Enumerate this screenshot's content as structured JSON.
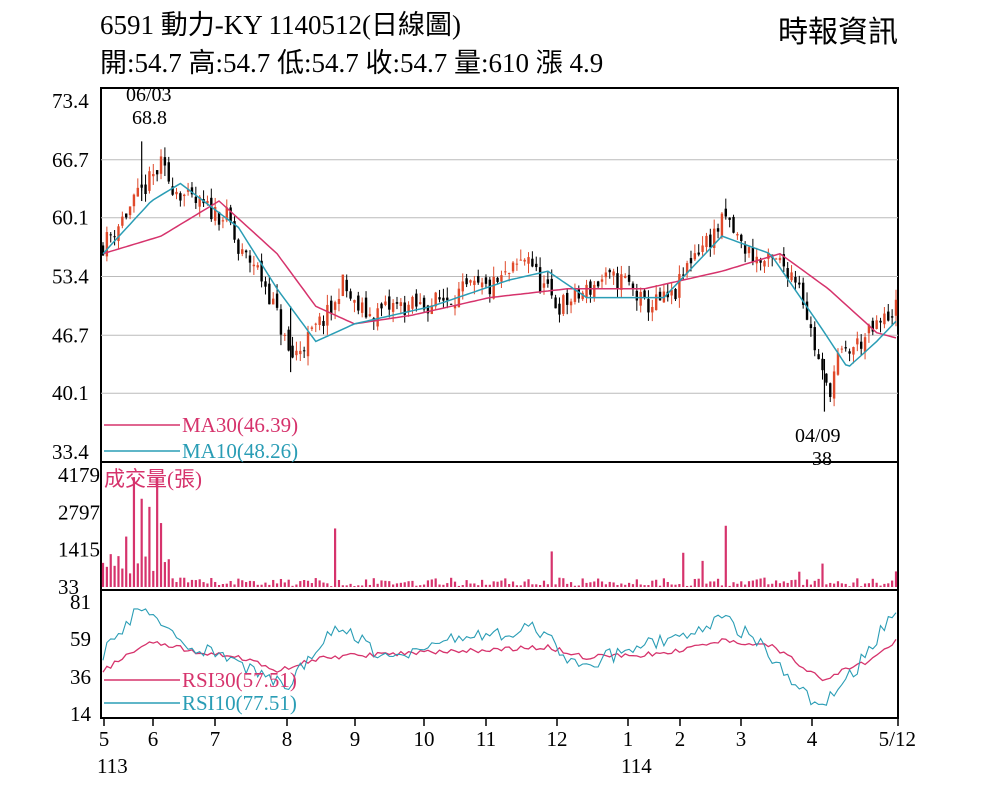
{
  "header": {
    "title": "6591  動力-KY 1140512(日線圖)",
    "ohlc": "開:54.7 高:54.7 低:54.7 收:54.7 量:610 漲 4.9",
    "source": "時報資訊"
  },
  "colors": {
    "up": "#e0492a",
    "down": "#000000",
    "ma30": "#d6336c",
    "ma10": "#2a9db5",
    "volume": "#d6336c",
    "grid": "#bbbbbb"
  },
  "chart_data": [
    {
      "type": "candlestick",
      "ylim": [
        33.4,
        73.4
      ],
      "yticks": [
        "73.4",
        "66.7",
        "60.1",
        "53.4",
        "46.7",
        "40.1",
        "33.4"
      ],
      "legend": [
        {
          "label": "MA30(46.39)"
        },
        {
          "label": "MA10(48.26)"
        }
      ],
      "annotations": [
        {
          "date": "06/03",
          "value": "68.8",
          "kind": "high"
        },
        {
          "date": "04/09",
          "value": "38",
          "kind": "low"
        }
      ],
      "close_trend": [
        [
          0,
          57
        ],
        [
          10,
          60
        ],
        [
          20,
          63
        ],
        [
          30,
          66
        ],
        [
          35,
          64
        ],
        [
          45,
          62
        ],
        [
          55,
          61
        ],
        [
          65,
          60
        ],
        [
          70,
          56
        ],
        [
          78,
          55
        ],
        [
          85,
          52
        ],
        [
          90,
          49
        ],
        [
          97,
          44
        ],
        [
          105,
          46
        ],
        [
          112,
          48
        ],
        [
          120,
          50
        ],
        [
          123,
          53
        ],
        [
          130,
          50
        ],
        [
          138,
          49
        ],
        [
          150,
          50
        ],
        [
          165,
          50
        ],
        [
          178,
          51
        ],
        [
          190,
          52
        ],
        [
          200,
          52
        ],
        [
          212,
          54
        ],
        [
          220,
          56
        ],
        [
          225,
          53
        ],
        [
          235,
          50
        ],
        [
          245,
          51
        ],
        [
          258,
          53
        ],
        [
          270,
          53
        ],
        [
          280,
          50
        ],
        [
          295,
          51
        ],
        [
          305,
          56
        ],
        [
          315,
          58
        ],
        [
          322,
          60
        ],
        [
          330,
          57
        ],
        [
          340,
          55
        ],
        [
          350,
          55
        ],
        [
          360,
          53
        ],
        [
          365,
          48
        ],
        [
          372,
          42
        ],
        [
          375,
          40
        ],
        [
          380,
          44
        ],
        [
          392,
          46
        ],
        [
          402,
          48
        ],
        [
          410,
          50
        ]
      ],
      "ma30_trend": [
        [
          0,
          56
        ],
        [
          30,
          58
        ],
        [
          60,
          62
        ],
        [
          90,
          56
        ],
        [
          110,
          50
        ],
        [
          130,
          48
        ],
        [
          160,
          49
        ],
        [
          200,
          51
        ],
        [
          240,
          52
        ],
        [
          280,
          52
        ],
        [
          320,
          54
        ],
        [
          350,
          56
        ],
        [
          375,
          52
        ],
        [
          400,
          47
        ],
        [
          410,
          46.4
        ]
      ],
      "ma10_trend": [
        [
          0,
          56
        ],
        [
          25,
          62
        ],
        [
          40,
          64
        ],
        [
          70,
          59
        ],
        [
          90,
          52
        ],
        [
          110,
          46
        ],
        [
          130,
          48
        ],
        [
          170,
          50
        ],
        [
          210,
          53
        ],
        [
          230,
          54
        ],
        [
          250,
          51
        ],
        [
          290,
          51
        ],
        [
          320,
          58
        ],
        [
          345,
          56
        ],
        [
          370,
          48
        ],
        [
          385,
          43
        ],
        [
          400,
          46
        ],
        [
          410,
          48.3
        ]
      ]
    },
    {
      "type": "bar",
      "title": "成交量(張)",
      "yticks": [
        "4179",
        "2797",
        "1415",
        "33"
      ],
      "ylim": [
        33,
        4179
      ]
    },
    {
      "type": "line",
      "yticks": [
        "81",
        "59",
        "36",
        "14"
      ],
      "ylim": [
        14,
        81
      ],
      "legend": [
        {
          "label": "RSI30(57.51)"
        },
        {
          "label": "RSI10(77.51)"
        }
      ]
    }
  ],
  "xaxis": {
    "months": [
      "5",
      "6",
      "7",
      "8",
      "9",
      "10",
      "11",
      "12",
      "1",
      "2",
      "3",
      "4",
      "5/12"
    ],
    "years": [
      "113",
      "114"
    ]
  }
}
